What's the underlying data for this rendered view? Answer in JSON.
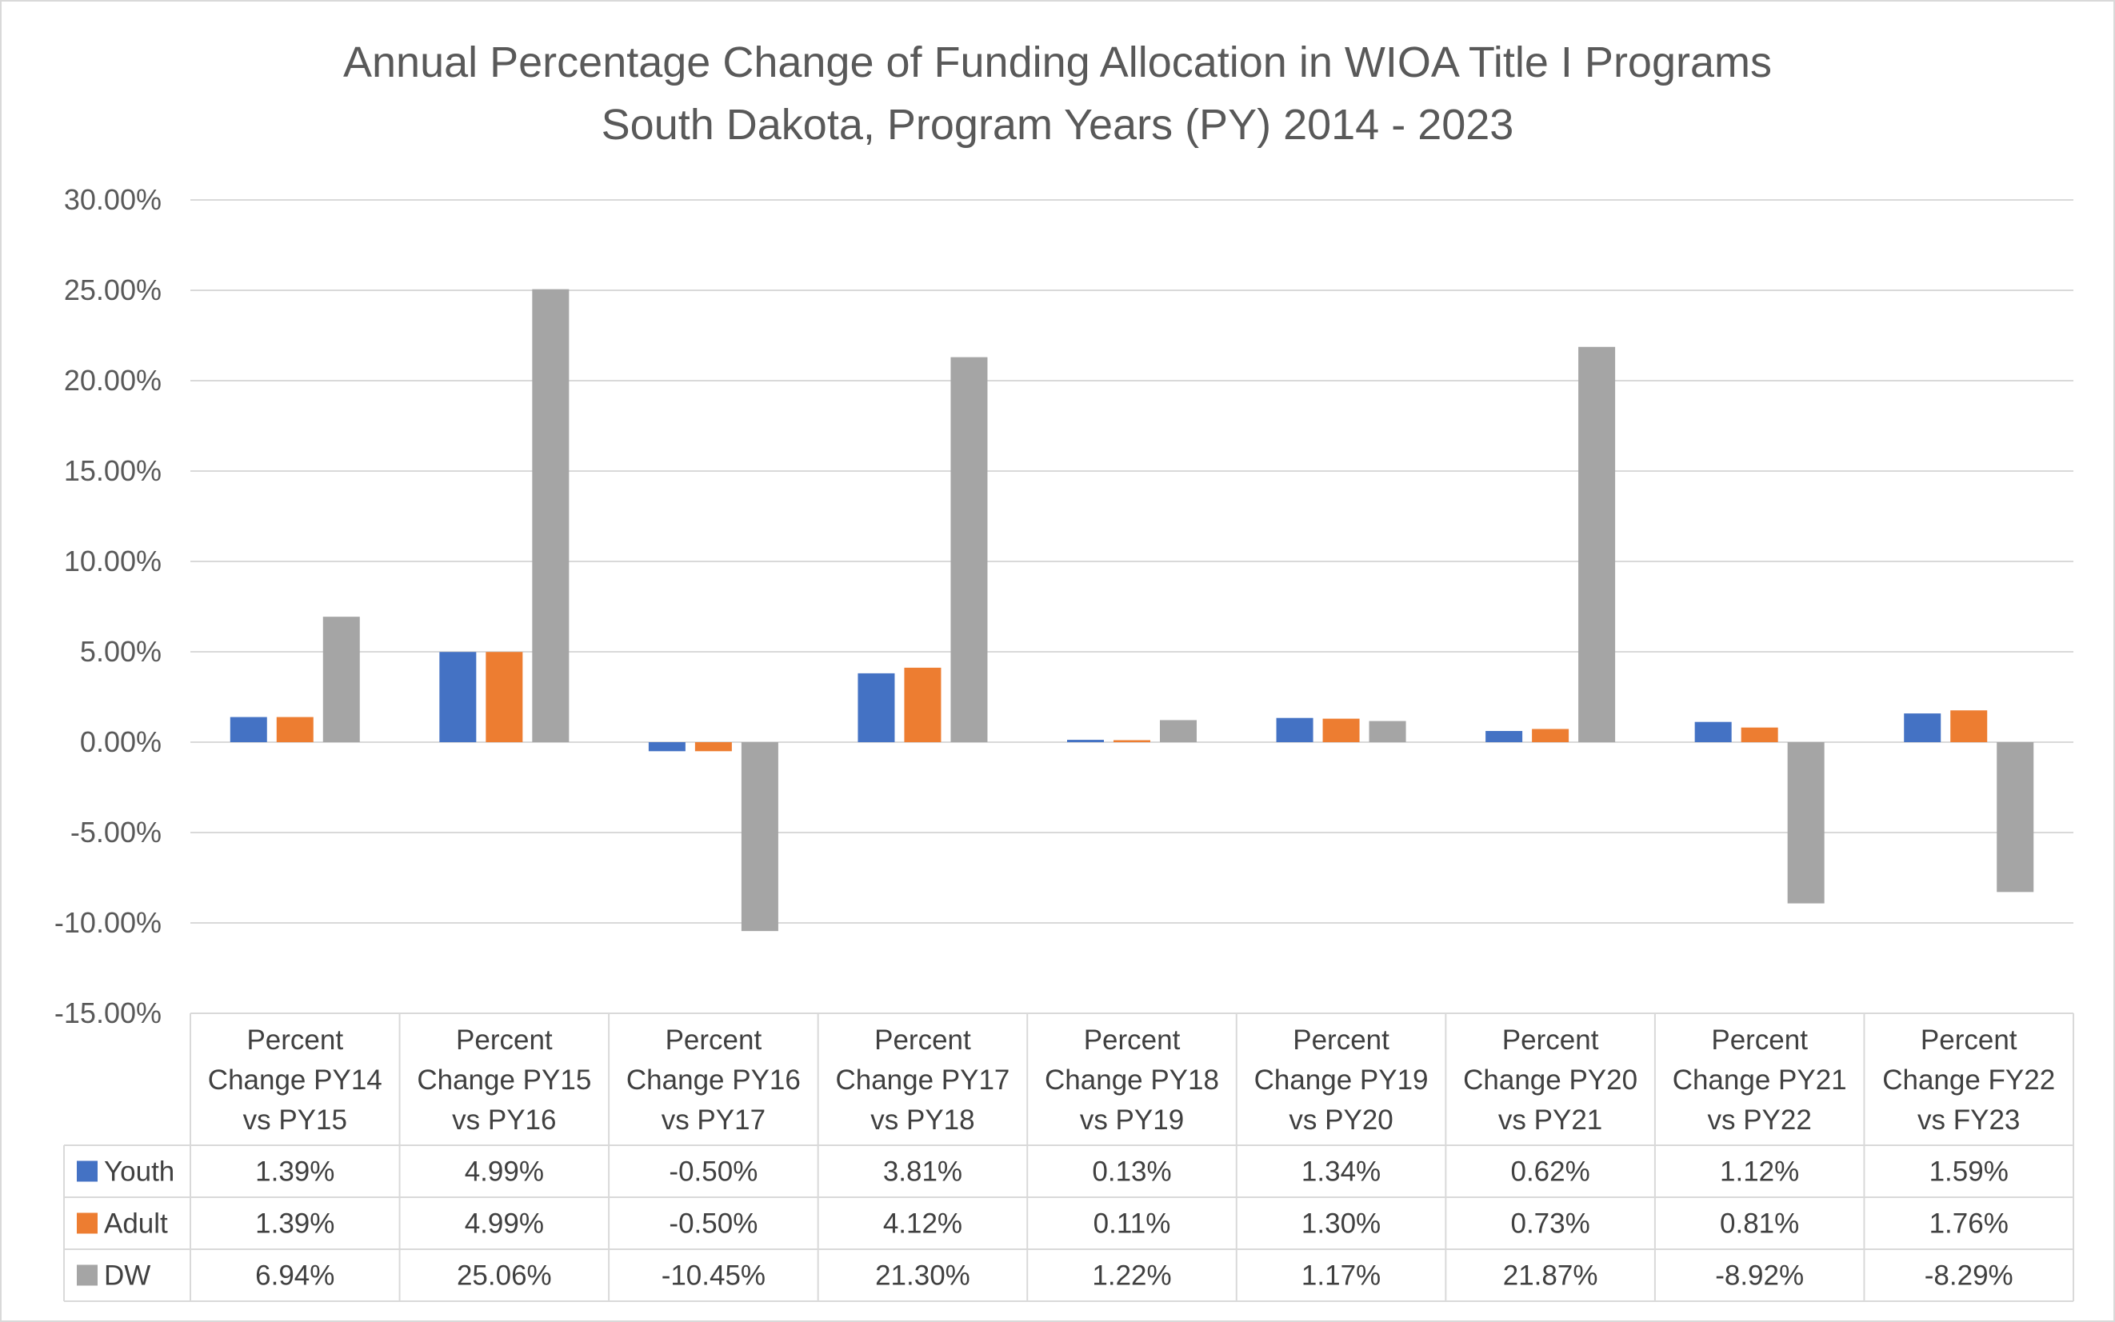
{
  "chart_data": {
    "type": "bar",
    "title": "Annual Percentage Change of Funding Allocation in WIOA Title I Programs",
    "subtitle": "South Dakota, Program Years (PY) 2014 - 2023",
    "categories": [
      [
        "Percent",
        "Change PY14",
        "vs PY15"
      ],
      [
        "Percent",
        "Change PY15",
        "vs PY16"
      ],
      [
        "Percent",
        "Change PY16",
        "vs PY17"
      ],
      [
        "Percent",
        "Change PY17",
        "vs PY18"
      ],
      [
        "Percent",
        "Change PY18",
        "vs PY19"
      ],
      [
        "Percent",
        "Change PY19",
        "vs PY20"
      ],
      [
        "Percent",
        "Change PY20",
        "vs PY21"
      ],
      [
        "Percent",
        "Change PY21",
        "vs PY22"
      ],
      [
        "Percent",
        "Change FY22",
        "vs FY23"
      ]
    ],
    "series": [
      {
        "name": "Youth",
        "color": "#4472c4",
        "values": [
          1.39,
          4.99,
          -0.5,
          3.81,
          0.13,
          1.34,
          0.62,
          1.12,
          1.59
        ],
        "labels": [
          "1.39%",
          "4.99%",
          "-0.50%",
          "3.81%",
          "0.13%",
          "1.34%",
          "0.62%",
          "1.12%",
          "1.59%"
        ]
      },
      {
        "name": "Adult",
        "color": "#ed7d31",
        "values": [
          1.39,
          4.99,
          -0.5,
          4.12,
          0.11,
          1.3,
          0.73,
          0.81,
          1.76
        ],
        "labels": [
          "1.39%",
          "4.99%",
          "-0.50%",
          "4.12%",
          "0.11%",
          "1.30%",
          "0.73%",
          "0.81%",
          "1.76%"
        ]
      },
      {
        "name": "DW",
        "color": "#a5a5a5",
        "values": [
          6.94,
          25.06,
          -10.45,
          21.3,
          1.22,
          1.17,
          21.87,
          -8.92,
          -8.29
        ],
        "labels": [
          "6.94%",
          "25.06%",
          "-10.45%",
          "21.30%",
          "1.22%",
          "1.17%",
          "21.87%",
          "-8.92%",
          "-8.29%"
        ]
      }
    ],
    "ylim": [
      -15,
      30
    ],
    "yticks": [
      30,
      25,
      20,
      15,
      10,
      5,
      0,
      -5,
      -10,
      -15
    ],
    "ytick_labels": [
      "30.00%",
      "25.00%",
      "20.00%",
      "15.00%",
      "10.00%",
      "5.00%",
      "0.00%",
      "-5.00%",
      "-10.00%",
      "-15.00%"
    ],
    "grid": true,
    "legend": "data-table"
  }
}
